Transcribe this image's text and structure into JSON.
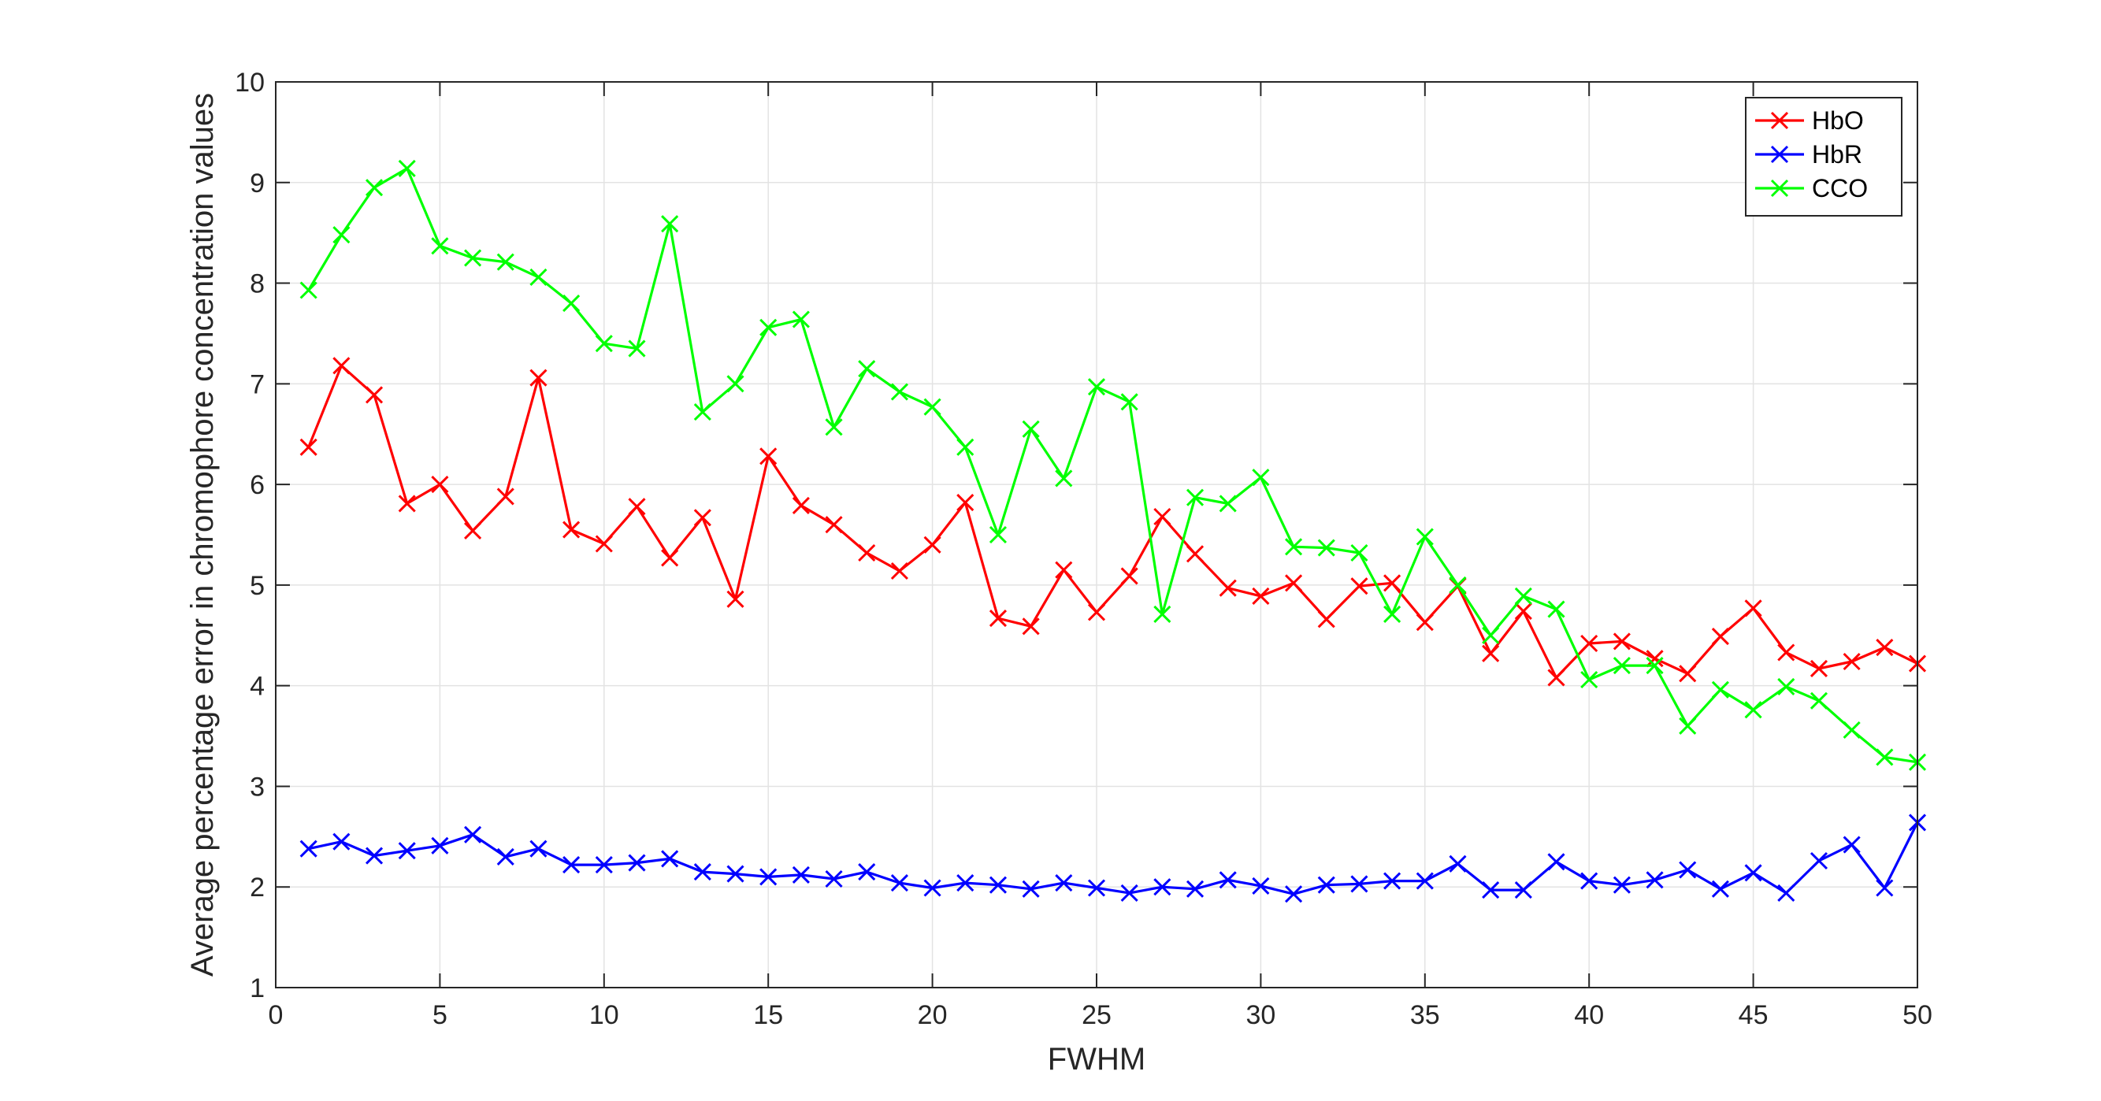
{
  "chart_data": {
    "type": "line",
    "title": "",
    "xlabel": "FWHM",
    "ylabel": "Average percentage error in chromophore concentration values",
    "xlim": [
      0,
      50
    ],
    "ylim": [
      1,
      10
    ],
    "xticks": [
      0,
      5,
      10,
      15,
      20,
      25,
      30,
      35,
      40,
      45,
      50
    ],
    "yticks": [
      1,
      2,
      3,
      4,
      5,
      6,
      7,
      8,
      9,
      10
    ],
    "grid": true,
    "legend_position": "top-right",
    "marker": "x",
    "x": [
      1,
      2,
      3,
      4,
      5,
      6,
      7,
      8,
      9,
      10,
      11,
      12,
      13,
      14,
      15,
      16,
      17,
      18,
      19,
      20,
      21,
      22,
      23,
      24,
      25,
      26,
      27,
      28,
      29,
      30,
      31,
      32,
      33,
      34,
      35,
      36,
      37,
      38,
      39,
      40,
      41,
      42,
      43,
      44,
      45,
      46,
      47,
      48,
      49,
      50
    ],
    "series": [
      {
        "name": "HbO",
        "color": "#ff0000",
        "values": [
          6.37,
          7.18,
          6.89,
          5.81,
          6.0,
          5.54,
          5.88,
          7.06,
          5.55,
          5.41,
          5.78,
          5.27,
          5.67,
          4.86,
          6.28,
          5.79,
          5.6,
          5.32,
          5.14,
          5.4,
          5.82,
          4.67,
          4.59,
          5.15,
          4.73,
          5.09,
          5.68,
          5.31,
          4.97,
          4.89,
          5.02,
          4.66,
          4.99,
          5.02,
          4.63,
          4.99,
          4.32,
          4.74,
          4.08,
          4.42,
          4.44,
          4.27,
          4.12,
          4.49,
          4.77,
          4.33,
          4.17,
          4.24,
          4.38,
          4.22
        ]
      },
      {
        "name": "HbR",
        "color": "#0000ff",
        "values": [
          2.38,
          2.45,
          2.31,
          2.36,
          2.41,
          2.52,
          2.3,
          2.38,
          2.22,
          2.22,
          2.24,
          2.28,
          2.15,
          2.13,
          2.1,
          2.12,
          2.08,
          2.15,
          2.04,
          1.99,
          2.04,
          2.02,
          1.98,
          2.04,
          1.99,
          1.94,
          2.0,
          1.98,
          2.07,
          2.01,
          1.93,
          2.02,
          2.03,
          2.06,
          2.06,
          2.23,
          1.97,
          1.97,
          2.25,
          2.06,
          2.02,
          2.07,
          2.17,
          1.98,
          2.14,
          1.94,
          2.26,
          2.42,
          1.99,
          2.64
        ]
      },
      {
        "name": "CCO",
        "color": "#00ff00",
        "values": [
          7.93,
          8.48,
          8.95,
          9.14,
          8.37,
          8.25,
          8.21,
          8.06,
          7.8,
          7.4,
          7.35,
          8.59,
          6.72,
          7.0,
          7.56,
          7.64,
          6.57,
          7.15,
          6.92,
          6.77,
          6.37,
          5.5,
          6.55,
          6.06,
          6.97,
          6.82,
          4.71,
          5.87,
          5.81,
          6.07,
          5.38,
          5.37,
          5.32,
          4.71,
          5.48,
          5.0,
          4.5,
          4.89,
          4.76,
          4.06,
          4.2,
          4.2,
          3.6,
          3.96,
          3.76,
          3.99,
          3.85,
          3.56,
          3.29,
          3.24
        ]
      }
    ]
  }
}
